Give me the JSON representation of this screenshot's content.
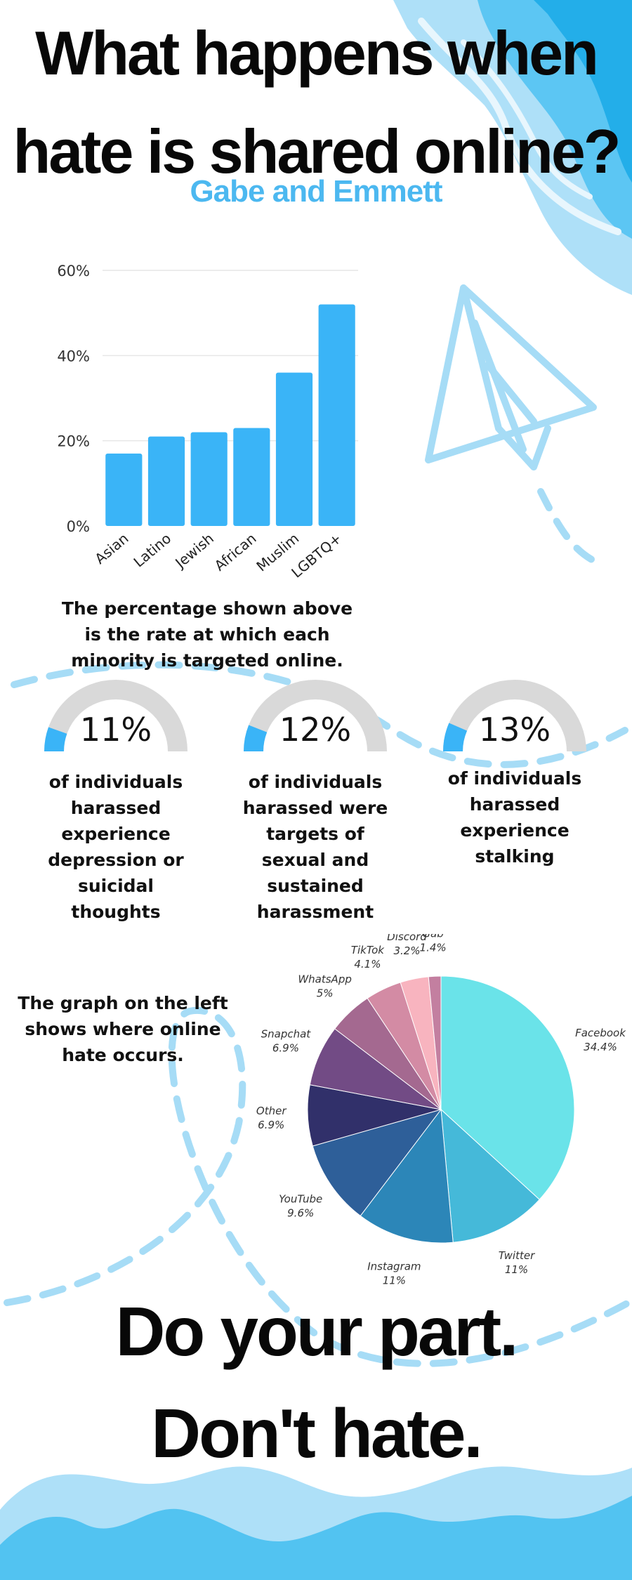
{
  "header": {
    "title_line1": "What happens when",
    "title_line2": "hate is shared online?",
    "subtitle": "Gabe and Emmett"
  },
  "colors": {
    "accent": "#3ab4f7",
    "light_accent": "#aee0f8",
    "gauge_track": "#d9d9d9"
  },
  "chart_data": [
    {
      "type": "bar",
      "categories": [
        "Asian",
        "Latino",
        "Jewish",
        "African",
        "Muslim",
        "LGBTQ+"
      ],
      "values": [
        17,
        21,
        22,
        23,
        36,
        52
      ],
      "ylim": [
        0,
        60
      ],
      "yticks": [
        "0%",
        "20%",
        "40%",
        "60%"
      ],
      "grid": true,
      "color": "#3ab4f7"
    },
    {
      "type": "pie",
      "labels": [
        "Facebook",
        "Twitter",
        "Instagram",
        "YouTube",
        "Other",
        "Snapchat",
        "WhatsApp",
        "TikTok",
        "Discord",
        "Gab"
      ],
      "values": [
        34.4,
        11,
        11,
        9.6,
        6.9,
        6.9,
        5,
        4.1,
        3.2,
        1.4
      ],
      "value_labels": [
        "34.4%",
        "11%",
        "11%",
        "9.6%",
        "6.9%",
        "6.9%",
        "5%",
        "4.1%",
        "3.2%",
        "1.4%"
      ],
      "colors": [
        "#6ae3e9",
        "#45b9d9",
        "#2c86b8",
        "#2e5f99",
        "#31306a",
        "#724b85",
        "#a46990",
        "#d38ba4",
        "#f8b4bf",
        "#c37fa0"
      ],
      "extra_colors": [
        "#8f5f8c",
        "#5a3f6b"
      ]
    },
    {
      "type": "gauge",
      "items": [
        {
          "value_text": "11%",
          "value": 11
        },
        {
          "value_text": "12%",
          "value": 12
        },
        {
          "value_text": "13%",
          "value": 13
        }
      ]
    }
  ],
  "bar_caption": "The percentage shown above is the rate at which each minority is targeted online.",
  "stats": [
    {
      "value_text": "11%",
      "description": "of individuals harassed experience depression or suicidal thoughts"
    },
    {
      "value_text": "12%",
      "description": "of individuals harassed were targets of sexual and sustained harassment"
    },
    {
      "value_text": "13%",
      "description": "of individuals harassed experience stalking"
    }
  ],
  "pie_caption": "The graph on the left shows where online hate occurs.",
  "footer": {
    "line1": "Do your part.",
    "line2": "Don't hate."
  },
  "icons": {
    "corner": "wave-corner-decoration",
    "plane": "paper-plane-icon",
    "bottom": "wave-footer-decoration"
  }
}
